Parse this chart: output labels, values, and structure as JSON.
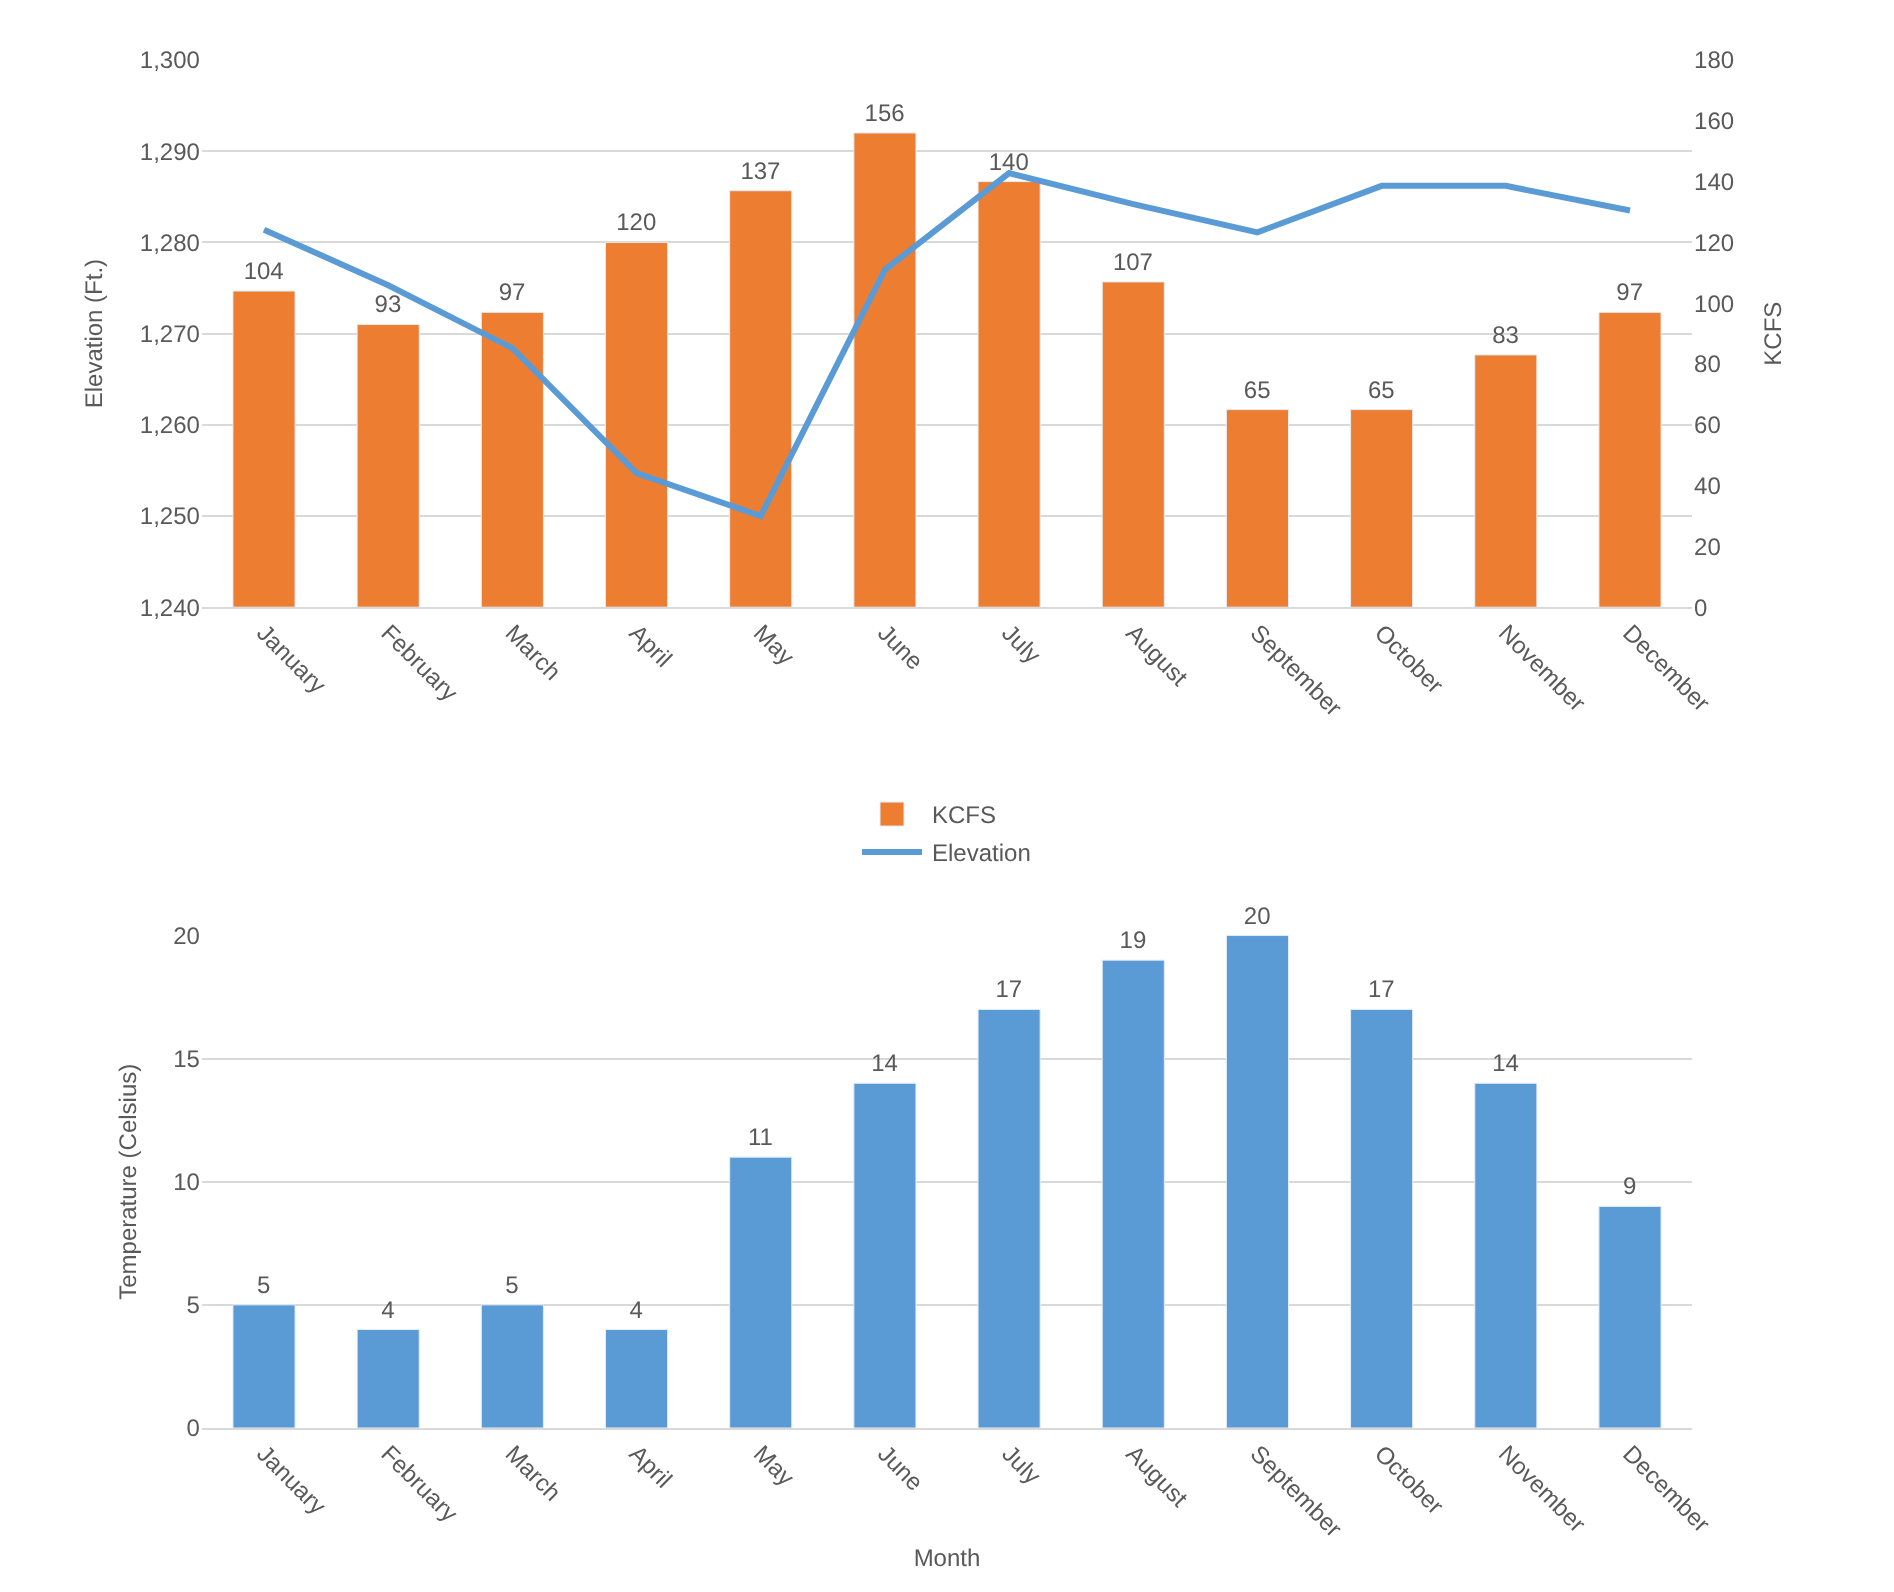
{
  "chart_data": [
    {
      "type": "bar",
      "categories": [
        "January",
        "February",
        "March",
        "April",
        "May",
        "June",
        "July",
        "August",
        "September",
        "October",
        "November",
        "December"
      ],
      "series": [
        {
          "name": "KCFS",
          "type": "bar",
          "axis": "y2",
          "color": "#ed7d31",
          "values": [
            104,
            93,
            97,
            120,
            137,
            156,
            140,
            107,
            65,
            65,
            83,
            97
          ],
          "value_labels": [
            "104",
            "93",
            "97",
            "120",
            "137",
            "156",
            "140",
            "107",
            "65",
            "65",
            "83",
            "97"
          ]
        },
        {
          "name": "Elevation",
          "type": "line",
          "color": "#5b9bd5",
          "values": [
            1281.4,
            1275.3,
            1268.4,
            1254.7,
            1250,
            1277,
            1287.6,
            1284.2,
            1281.1,
            1286.2,
            1286.2,
            1283.5
          ]
        }
      ],
      "ylabel": "Elevation (Ft.)",
      "y2label": "KCFS",
      "ylim": [
        1240,
        1300
      ],
      "yticks": [
        {
          "value": 1240,
          "label": "1,240"
        },
        {
          "value": 1250,
          "label": "1,250"
        },
        {
          "value": 1260,
          "label": "1,260"
        },
        {
          "value": 1270,
          "label": "1,270"
        },
        {
          "value": 1280,
          "label": "1,280"
        },
        {
          "value": 1290,
          "label": "1,290"
        },
        {
          "value": 1300,
          "label": "1,300"
        }
      ],
      "y2lim": [
        0,
        180
      ],
      "y2ticks": [
        0,
        20,
        40,
        60,
        80,
        100,
        120,
        140,
        160,
        180
      ],
      "grid": "y",
      "legend": "bottom",
      "marker": "none",
      "line_style": "solid"
    },
    {
      "type": "bar",
      "categories": [
        "January",
        "February",
        "March",
        "April",
        "May",
        "June",
        "July",
        "August",
        "September",
        "October",
        "November",
        "December"
      ],
      "values": [
        5,
        4,
        5,
        4,
        11,
        14,
        17,
        19,
        20,
        17,
        14,
        9
      ],
      "color": "#5b9bd5",
      "xlabel": "Month",
      "ylabel": "Temperature (Celsius)",
      "ylim": [
        0,
        20
      ],
      "yticks": [
        0,
        5,
        10,
        15,
        20
      ],
      "data_labels": true,
      "grid": "y"
    }
  ]
}
